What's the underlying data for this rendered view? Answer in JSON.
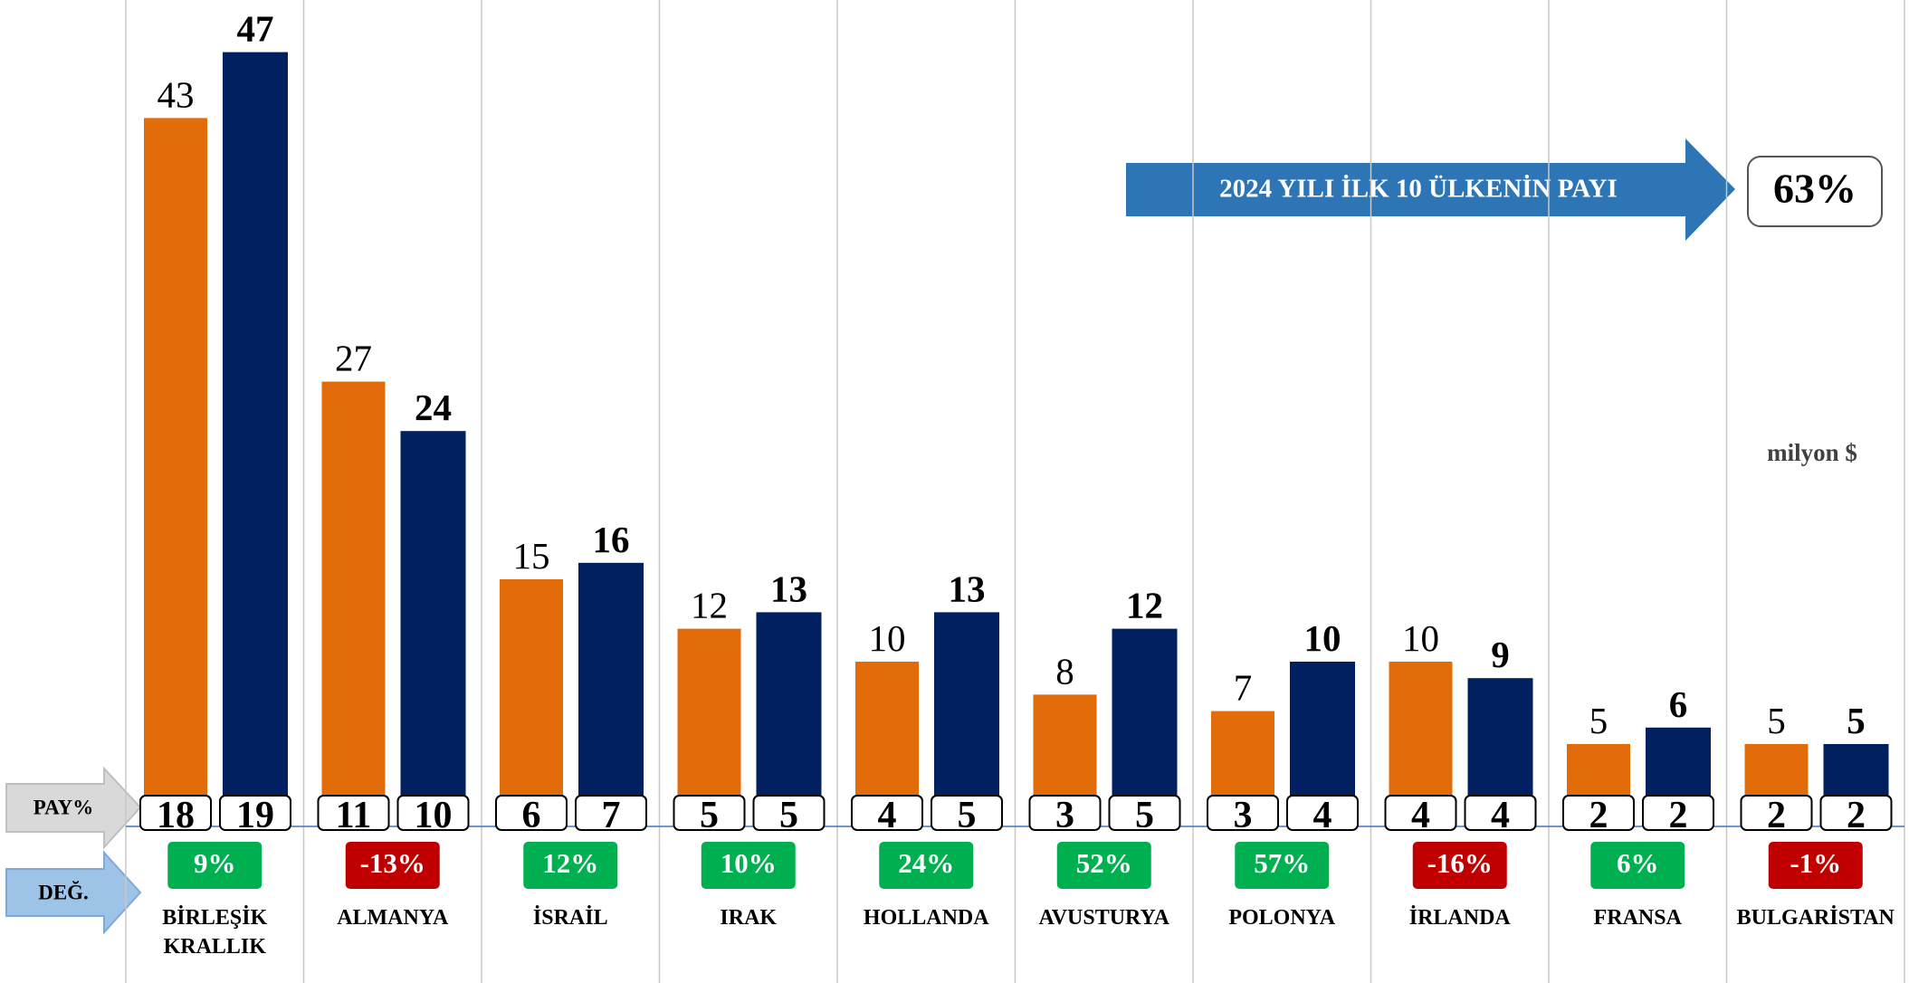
{
  "chart_data": {
    "type": "bar",
    "categories": [
      "BİRLEŞİK KRALLIK",
      "ALMANYA",
      "İSRAİL",
      "IRAK",
      "HOLLANDA",
      "AVUSTURYA",
      "POLONYA",
      "İRLANDA",
      "FRANSA",
      "BULGARİSTAN"
    ],
    "series": [
      {
        "color": "#e36c0a",
        "values": [
          43,
          27,
          15,
          12,
          10,
          8,
          7,
          10,
          5,
          5
        ],
        "share_values": [
          18,
          11,
          6,
          5,
          4,
          3,
          3,
          4,
          2,
          2
        ]
      },
      {
        "color": "#002060",
        "values": [
          47,
          24,
          16,
          13,
          13,
          12,
          10,
          9,
          6,
          5
        ],
        "share_values": [
          19,
          10,
          7,
          5,
          5,
          5,
          4,
          4,
          2,
          2
        ]
      }
    ],
    "change_values": [
      9,
      -13,
      12,
      10,
      24,
      52,
      57,
      -16,
      6,
      -1
    ],
    "change_labels": [
      "9%",
      "-13%",
      "12%",
      "10%",
      "24%",
      "52%",
      "57%",
      "-16%",
      "6%",
      "-1%"
    ],
    "positive_color": "#00b050",
    "negative_color": "#c00000",
    "ylim": [
      0,
      50
    ],
    "row_labels": [
      "PAY%",
      "DEĞ."
    ],
    "unit_label": "milyon $",
    "annotation": {
      "text": "2024 YILI İLK 10 ÜLKENİN PAYI",
      "value": 63,
      "label": "63%"
    }
  }
}
